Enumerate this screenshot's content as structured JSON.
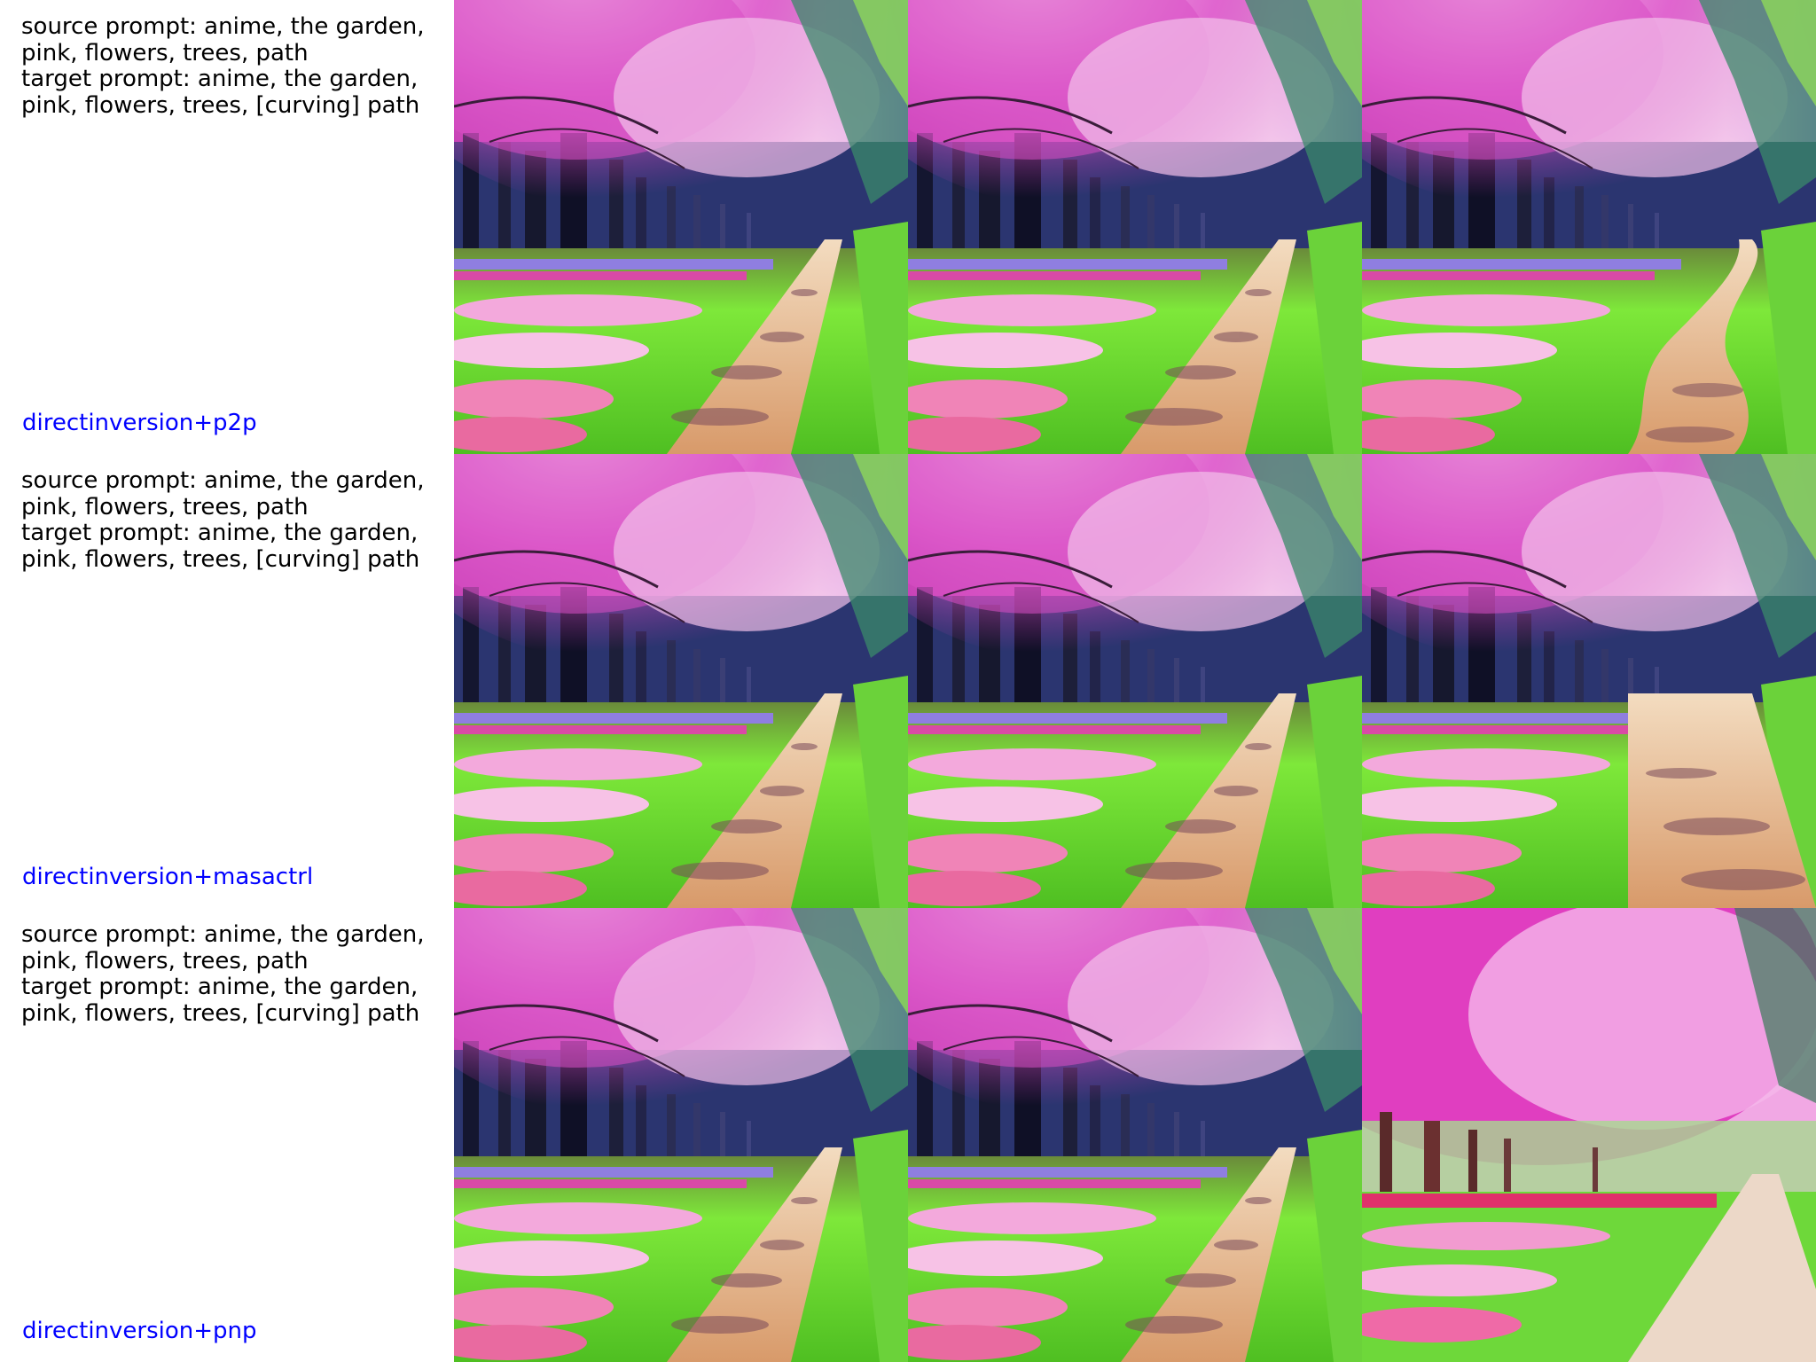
{
  "rows": [
    {
      "prompt_lines": [
        "source prompt: anime, the garden,",
        "pink, flowers, trees, path",
        "target prompt: anime, the garden,",
        "pink, flowers, trees, [curving] path"
      ],
      "method": "directinversion+p2p"
    },
    {
      "prompt_lines": [
        "source prompt: anime, the garden,",
        "pink, flowers, trees, path",
        "target prompt: anime, the garden,",
        "pink, flowers, trees, [curving] path"
      ],
      "method": "directinversion+masactrl"
    },
    {
      "prompt_lines": [
        "source prompt: anime, the garden,",
        "pink, flowers, trees, path",
        "target prompt: anime, the garden,",
        "pink, flowers, trees, [curving] path"
      ],
      "method": "directinversion+pnp"
    }
  ],
  "colors": {
    "method_label": "#0000ff",
    "prompt_text": "#000000",
    "canopy_pink": "#e05bc8",
    "canopy_light": "#f4b6e6",
    "grass": "#7ee83a",
    "path": "#e8b98a",
    "trunks": "#1d1f3a"
  }
}
